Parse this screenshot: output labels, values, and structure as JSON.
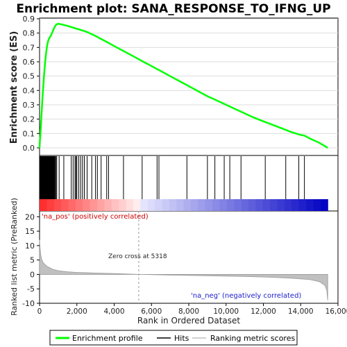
{
  "chart_data": {
    "type": "line",
    "title": "Enrichment plot: SANA_RESPONSE_TO_IFNG_UP",
    "panels": {
      "enrichment": {
        "ylabel": "Enrichment score (ES)",
        "ylim": [
          0,
          0.9
        ],
        "yticks": [
          "0.0",
          "0.1",
          "0.2",
          "0.3",
          "0.4",
          "0.5",
          "0.6",
          "0.7",
          "0.8",
          "0.9"
        ],
        "series": [
          {
            "name": "Enrichment profile",
            "color": "#00ff00",
            "points": [
              [
                0,
                0
              ],
              [
                20,
                0.05
              ],
              [
                50,
                0.1
              ],
              [
                100,
                0.22
              ],
              [
                150,
                0.33
              ],
              [
                200,
                0.43
              ],
              [
                250,
                0.52
              ],
              [
                300,
                0.6
              ],
              [
                350,
                0.66
              ],
              [
                400,
                0.71
              ],
              [
                450,
                0.74
              ],
              [
                500,
                0.76
              ],
              [
                600,
                0.78
              ],
              [
                700,
                0.81
              ],
              [
                800,
                0.84
              ],
              [
                900,
                0.86
              ],
              [
                1000,
                0.865
              ],
              [
                1200,
                0.86
              ],
              [
                1500,
                0.85
              ],
              [
                2000,
                0.83
              ],
              [
                2500,
                0.81
              ],
              [
                3000,
                0.78
              ],
              [
                3500,
                0.745
              ],
              [
                4000,
                0.71
              ],
              [
                4500,
                0.675
              ],
              [
                5000,
                0.64
              ],
              [
                5500,
                0.605
              ],
              [
                6000,
                0.57
              ],
              [
                6500,
                0.535
              ],
              [
                7000,
                0.5
              ],
              [
                7500,
                0.465
              ],
              [
                8000,
                0.43
              ],
              [
                8500,
                0.395
              ],
              [
                9000,
                0.36
              ],
              [
                9500,
                0.33
              ],
              [
                10000,
                0.3
              ],
              [
                10500,
                0.27
              ],
              [
                11000,
                0.24
              ],
              [
                11500,
                0.21
              ],
              [
                12000,
                0.185
              ],
              [
                12500,
                0.16
              ],
              [
                13000,
                0.135
              ],
              [
                13500,
                0.11
              ],
              [
                14000,
                0.09
              ],
              [
                14200,
                0.085
              ],
              [
                14500,
                0.065
              ],
              [
                15000,
                0.035
              ],
              [
                15450,
                0.0
              ]
            ]
          }
        ]
      },
      "hits": {
        "label": "Hits",
        "positions": [
          20,
          40,
          60,
          80,
          100,
          120,
          140,
          160,
          180,
          200,
          220,
          240,
          260,
          280,
          300,
          320,
          340,
          360,
          380,
          400,
          420,
          440,
          460,
          480,
          500,
          520,
          540,
          560,
          580,
          600,
          620,
          640,
          660,
          680,
          700,
          720,
          740,
          760,
          780,
          800,
          830,
          870,
          920,
          1050,
          1300,
          1700,
          1800,
          1900,
          1950,
          2000,
          2100,
          2200,
          2300,
          2400,
          2550,
          2800,
          3000,
          3100,
          3300,
          3600,
          3700,
          4500,
          5500,
          6300,
          6400,
          7900,
          9000,
          9400,
          9900,
          10200,
          10800,
          12100,
          13200,
          13900,
          14200
        ]
      },
      "ranking": {
        "label": "Ranking metric scores",
        "ylabel": "Ranked list metric (PreRanked)",
        "xlabel": "Rank in Ordered Dataset",
        "ylim": [
          -10,
          22
        ],
        "yticks": [
          "-10",
          "-5",
          "0",
          "5",
          "10",
          "15",
          "20"
        ],
        "xlim": [
          0,
          16000
        ],
        "xticks": [
          "0",
          "2,000",
          "4,000",
          "6,000",
          "8,000",
          "10,000",
          "12,000",
          "14,000",
          "16,000"
        ],
        "zero_cross": 5318,
        "zero_cross_label": "Zero cross at 5318",
        "pos_label": "'na_pos' (positively correlated)",
        "neg_label": "'na_neg' (negatively correlated)",
        "points": [
          [
            0,
            12
          ],
          [
            30,
            9
          ],
          [
            60,
            7
          ],
          [
            100,
            5.5
          ],
          [
            200,
            4
          ],
          [
            400,
            2.8
          ],
          [
            700,
            1.8
          ],
          [
            1000,
            1.3
          ],
          [
            1500,
            0.9
          ],
          [
            2000,
            0.7
          ],
          [
            3000,
            0.5
          ],
          [
            4000,
            0.3
          ],
          [
            5318,
            0
          ],
          [
            7000,
            -0.2
          ],
          [
            9000,
            -0.45
          ],
          [
            11000,
            -0.7
          ],
          [
            12500,
            -1.0
          ],
          [
            13500,
            -1.3
          ],
          [
            14500,
            -1.8
          ],
          [
            15000,
            -2.5
          ],
          [
            15300,
            -3.8
          ],
          [
            15400,
            -5.5
          ],
          [
            15450,
            -9
          ]
        ]
      }
    },
    "total": 15450,
    "legend": {
      "items": [
        {
          "name": "Enrichment profile",
          "color": "#00ff00"
        },
        {
          "name": "Hits",
          "color": "#000000"
        },
        {
          "name": "Ranking metric scores",
          "color": "#c0c0c0"
        }
      ]
    }
  }
}
